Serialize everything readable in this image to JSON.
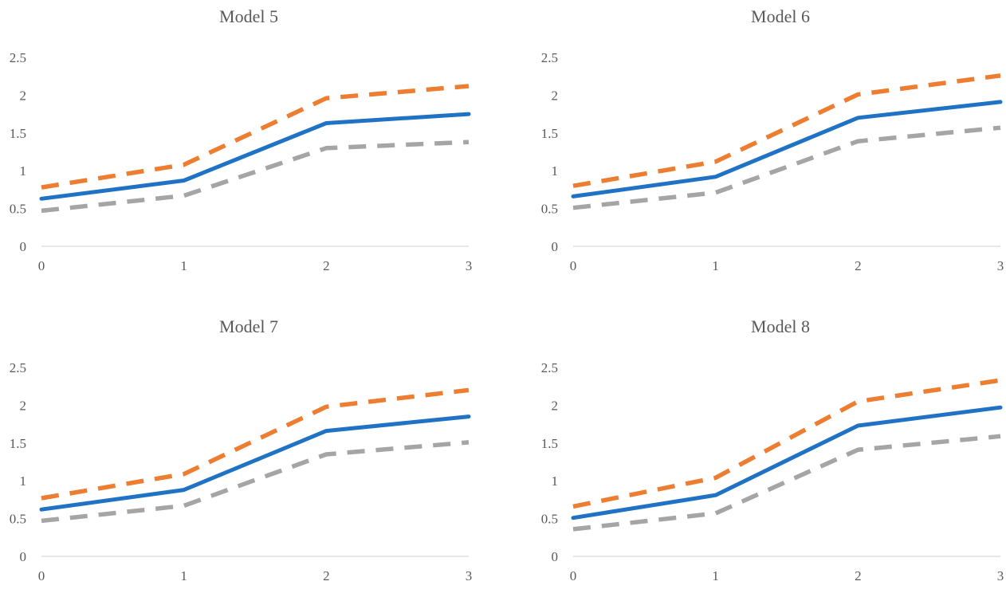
{
  "chart_data": [
    {
      "type": "line",
      "title": "Model 5",
      "x": [
        0,
        1,
        2,
        3
      ],
      "xlabel": "",
      "ylabel": "",
      "ylim": [
        0,
        2.5
      ],
      "yticks": [
        "0",
        "0.5",
        "1",
        "1.5",
        "2",
        "2.5"
      ],
      "xticks": [
        "0",
        "1",
        "2",
        "3"
      ],
      "grid": false,
      "series": [
        {
          "values": [
            0.78,
            1.08,
            1.96,
            2.12
          ],
          "color": "#ED7D31",
          "style": "dashed"
        },
        {
          "values": [
            0.63,
            0.87,
            1.63,
            1.75
          ],
          "color": "#1F72C4",
          "style": "solid"
        },
        {
          "values": [
            0.47,
            0.67,
            1.3,
            1.38
          ],
          "color": "#A5A5A5",
          "style": "dashed"
        }
      ]
    },
    {
      "type": "line",
      "title": "Model 6",
      "x": [
        0,
        1,
        2,
        3
      ],
      "xlabel": "",
      "ylabel": "",
      "ylim": [
        0,
        2.5
      ],
      "yticks": [
        "0",
        "0.5",
        "1",
        "1.5",
        "2",
        "2.5"
      ],
      "xticks": [
        "0",
        "1",
        "2",
        "3"
      ],
      "grid": false,
      "series": [
        {
          "values": [
            0.8,
            1.12,
            2.01,
            2.26
          ],
          "color": "#ED7D31",
          "style": "dashed"
        },
        {
          "values": [
            0.66,
            0.92,
            1.7,
            1.91
          ],
          "color": "#1F72C4",
          "style": "solid"
        },
        {
          "values": [
            0.51,
            0.71,
            1.39,
            1.57
          ],
          "color": "#A5A5A5",
          "style": "dashed"
        }
      ]
    },
    {
      "type": "line",
      "title": "Model 7",
      "x": [
        0,
        1,
        2,
        3
      ],
      "xlabel": "",
      "ylabel": "",
      "ylim": [
        0,
        2.5
      ],
      "yticks": [
        "0",
        "0.5",
        "1",
        "1.5",
        "2",
        "2.5"
      ],
      "xticks": [
        "0",
        "1",
        "2",
        "3"
      ],
      "grid": false,
      "series": [
        {
          "values": [
            0.77,
            1.09,
            1.98,
            2.2
          ],
          "color": "#ED7D31",
          "style": "dashed"
        },
        {
          "values": [
            0.62,
            0.88,
            1.66,
            1.85
          ],
          "color": "#1F72C4",
          "style": "solid"
        },
        {
          "values": [
            0.47,
            0.67,
            1.35,
            1.51
          ],
          "color": "#A5A5A5",
          "style": "dashed"
        }
      ]
    },
    {
      "type": "line",
      "title": "Model 8",
      "x": [
        0,
        1,
        2,
        3
      ],
      "xlabel": "",
      "ylabel": "",
      "ylim": [
        0,
        2.5
      ],
      "yticks": [
        "0",
        "0.5",
        "1",
        "1.5",
        "2",
        "2.5"
      ],
      "xticks": [
        "0",
        "1",
        "2",
        "3"
      ],
      "grid": false,
      "series": [
        {
          "values": [
            0.66,
            1.04,
            2.05,
            2.33
          ],
          "color": "#ED7D31",
          "style": "dashed"
        },
        {
          "values": [
            0.51,
            0.81,
            1.73,
            1.97
          ],
          "color": "#1F72C4",
          "style": "solid"
        },
        {
          "values": [
            0.36,
            0.57,
            1.41,
            1.59
          ],
          "color": "#A5A5A5",
          "style": "dashed"
        }
      ]
    }
  ]
}
